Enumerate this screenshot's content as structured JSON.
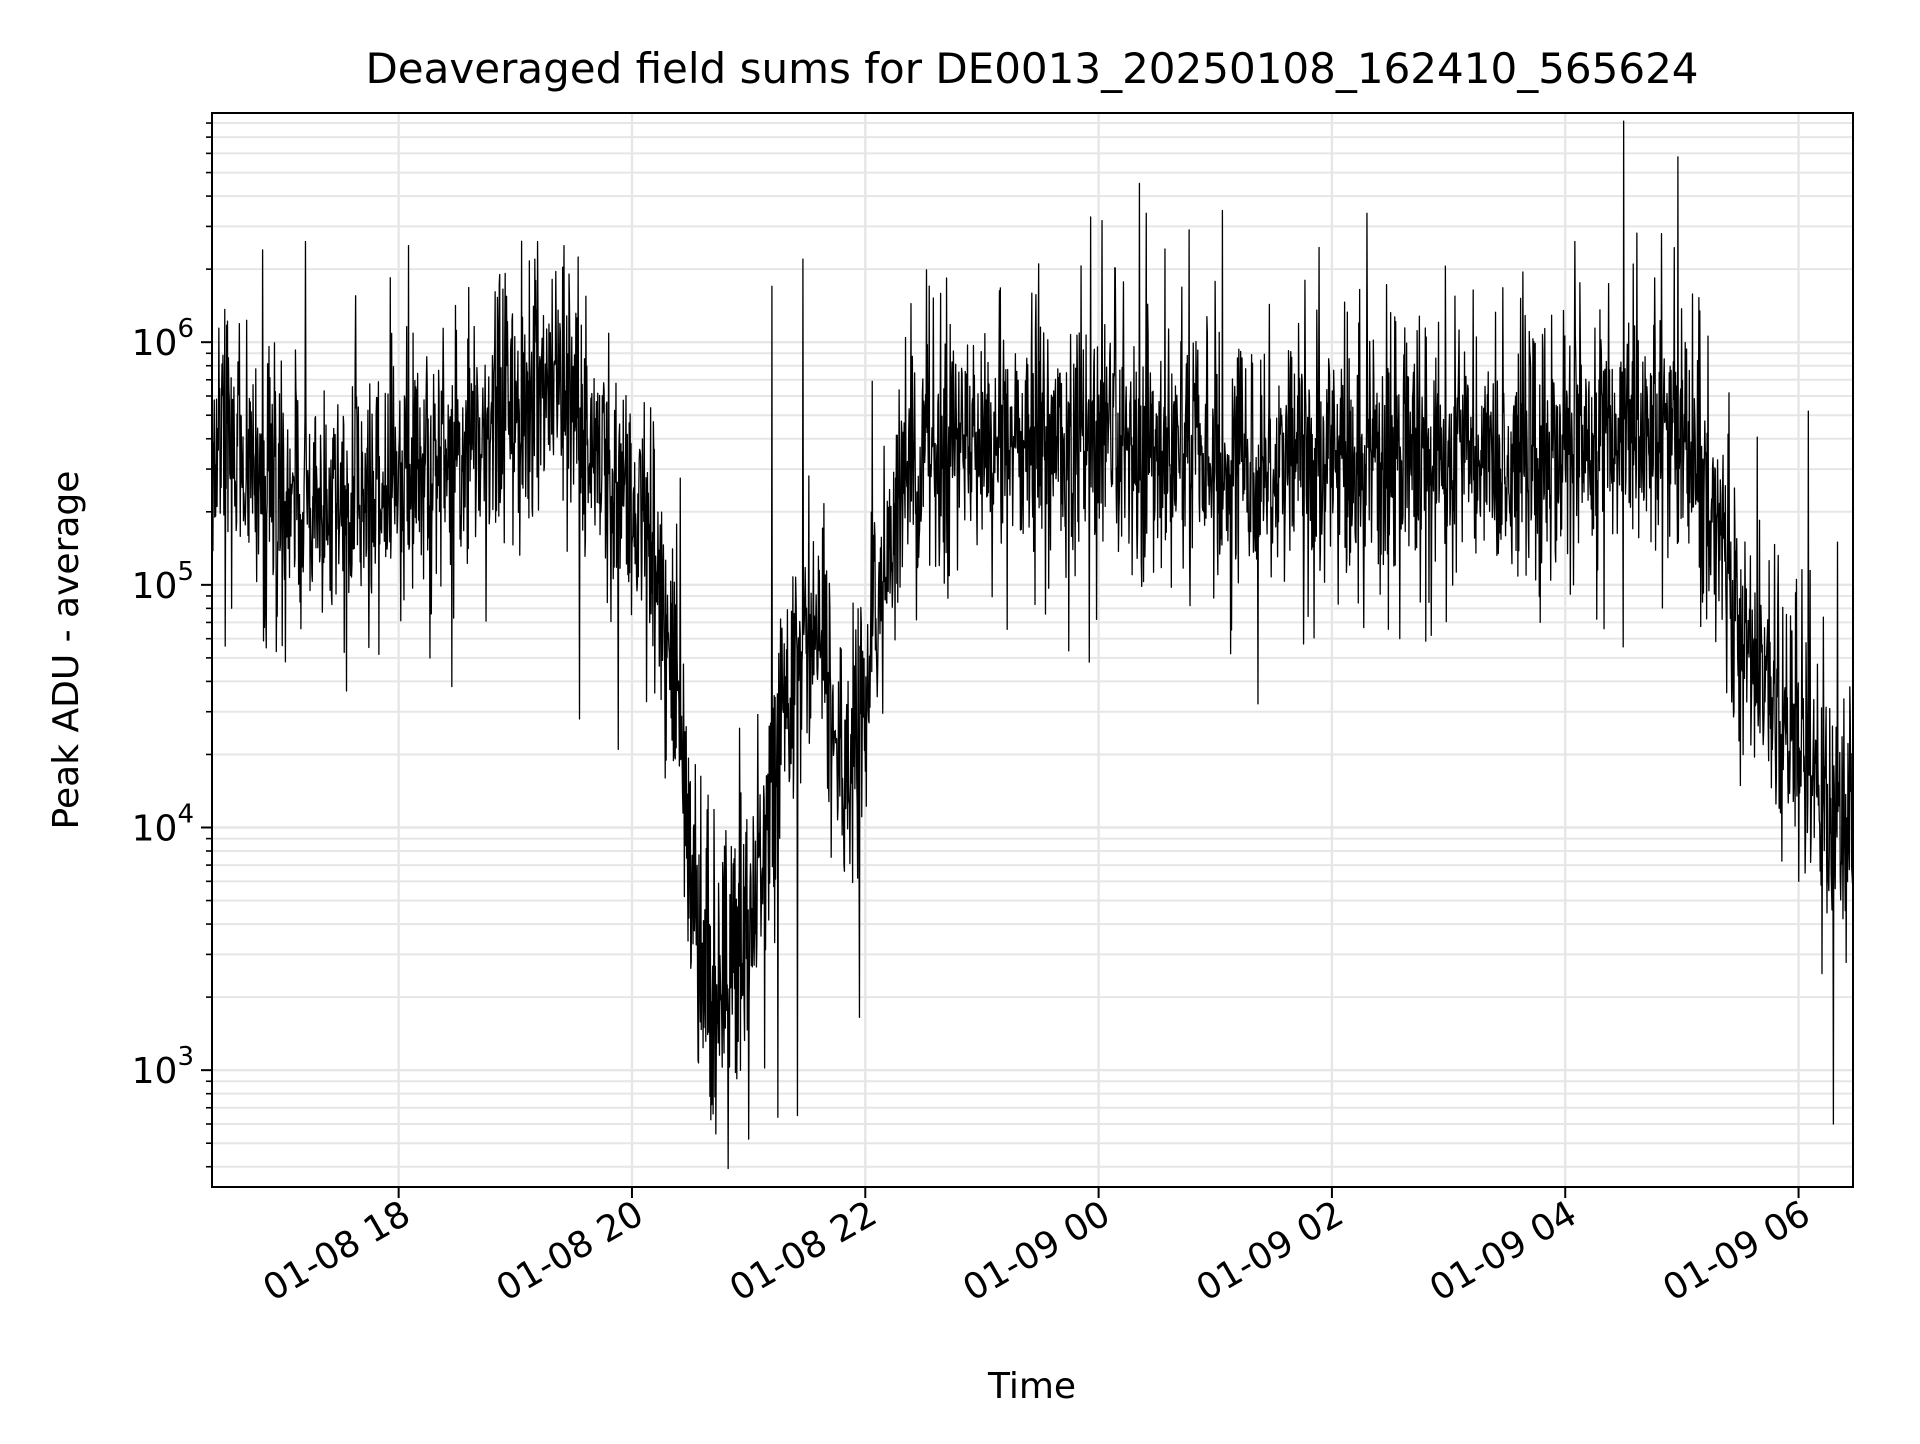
{
  "chart_data": {
    "type": "line",
    "title": "Deaveraged field sums for DE0013_20250108_162410_565624",
    "xlabel": "Time",
    "ylabel": "Peak ADU - average",
    "y_scale": "log",
    "ylim": [
      330,
      8800000
    ],
    "xlim": [
      "2025-01-08T16:24:00",
      "2025-01-09T06:28:00"
    ],
    "x_ticks": [
      {
        "label": "01-08 18",
        "time": "2025-01-08T18:00:00"
      },
      {
        "label": "01-08 20",
        "time": "2025-01-08T20:00:00"
      },
      {
        "label": "01-08 22",
        "time": "2025-01-08T22:00:00"
      },
      {
        "label": "01-09 00",
        "time": "2025-01-09T00:00:00"
      },
      {
        "label": "01-09 02",
        "time": "2025-01-09T02:00:00"
      },
      {
        "label": "01-09 04",
        "time": "2025-01-09T04:00:00"
      },
      {
        "label": "01-09 06",
        "time": "2025-01-09T06:00:00"
      }
    ],
    "y_ticks": [
      {
        "base": "10",
        "exp": "3",
        "value": 1000
      },
      {
        "base": "10",
        "exp": "4",
        "value": 10000
      },
      {
        "base": "10",
        "exp": "5",
        "value": 100000
      },
      {
        "base": "10",
        "exp": "6",
        "value": 1000000
      }
    ],
    "grid": true,
    "line_color": "#000000",
    "grid_color": "#e6e6e6",
    "series_envelope": {
      "x": [
        "2025-01-08T16:24:00",
        "2025-01-08T16:45:00",
        "2025-01-08T17:00:00",
        "2025-01-08T17:30:00",
        "2025-01-08T18:00:00",
        "2025-01-08T18:30:00",
        "2025-01-08T19:00:00",
        "2025-01-08T19:20:00",
        "2025-01-08T19:35:00",
        "2025-01-08T19:50:00",
        "2025-01-08T20:05:00",
        "2025-01-08T20:20:00",
        "2025-01-08T20:35:00",
        "2025-01-08T20:50:00",
        "2025-01-08T21:05:00",
        "2025-01-08T21:20:00",
        "2025-01-08T21:35:00",
        "2025-01-08T21:50:00",
        "2025-01-08T22:05:00",
        "2025-01-08T22:20:00",
        "2025-01-08T22:40:00",
        "2025-01-08T23:00:00",
        "2025-01-09T00:00:00",
        "2025-01-09T01:00:00",
        "2025-01-09T02:00:00",
        "2025-01-09T03:00:00",
        "2025-01-09T04:00:00",
        "2025-01-09T04:30:00",
        "2025-01-09T05:00:00",
        "2025-01-09T05:15:00",
        "2025-01-09T05:30:00",
        "2025-01-09T05:45:00",
        "2025-01-09T06:00:00",
        "2025-01-09T06:15:00",
        "2025-01-09T06:28:00"
      ],
      "median": [
        480000,
        300000,
        220000,
        200000,
        260000,
        330000,
        550000,
        700000,
        450000,
        250000,
        180000,
        60000,
        2500,
        2200,
        5000,
        30000,
        70000,
        12000,
        70000,
        300000,
        380000,
        400000,
        360000,
        320000,
        330000,
        350000,
        350000,
        420000,
        380000,
        250000,
        60000,
        35000,
        25000,
        12000,
        9000
      ]
    },
    "spikes": [
      {
        "time": "2025-01-08T16:50:00",
        "value": 2400000
      },
      {
        "time": "2025-01-08T17:12:00",
        "value": 2600000
      },
      {
        "time": "2025-01-08T18:05:00",
        "value": 2500000
      },
      {
        "time": "2025-01-08T18:52:00",
        "value": 1900000
      },
      {
        "time": "2025-01-08T19:10:00",
        "value": 2200000
      },
      {
        "time": "2025-01-08T19:25:00",
        "value": 2500000
      },
      {
        "time": "2025-01-08T21:12:00",
        "value": 1700000
      },
      {
        "time": "2025-01-08T21:28:00",
        "value": 2200000
      },
      {
        "time": "2025-01-09T02:18:00",
        "value": 3400000
      },
      {
        "time": "2025-01-09T04:05:00",
        "value": 2600000
      },
      {
        "time": "2025-01-09T04:35:00",
        "value": 2100000
      },
      {
        "time": "2025-01-09T04:58:00",
        "value": 5800000
      },
      {
        "time": "2025-01-09T06:05:00",
        "value": 520000
      },
      {
        "time": "2025-01-09T06:20:00",
        "value": 150000
      }
    ],
    "dips": [
      {
        "time": "2025-01-08T16:52:00",
        "value": 55000
      },
      {
        "time": "2025-01-08T19:33:00",
        "value": 28000
      },
      {
        "time": "2025-01-08T19:53:00",
        "value": 21000
      },
      {
        "time": "2025-01-08T20:17:00",
        "value": 16000
      },
      {
        "time": "2025-01-08T20:40:00",
        "value": 780
      },
      {
        "time": "2025-01-08T21:00:00",
        "value": 520
      },
      {
        "time": "2025-01-08T21:15:00",
        "value": 640
      },
      {
        "time": "2025-01-08T21:25:00",
        "value": 650
      },
      {
        "time": "2025-01-08T21:57:00",
        "value": 1650
      },
      {
        "time": "2025-01-09T01:08:00",
        "value": 52000
      },
      {
        "time": "2025-01-09T02:35:00",
        "value": 60000
      },
      {
        "time": "2025-01-09T05:50:00",
        "value": 12000
      },
      {
        "time": "2025-01-09T06:00:00",
        "value": 6000
      },
      {
        "time": "2025-01-09T06:12:00",
        "value": 2500
      },
      {
        "time": "2025-01-09T06:18:00",
        "value": 600
      }
    ]
  }
}
